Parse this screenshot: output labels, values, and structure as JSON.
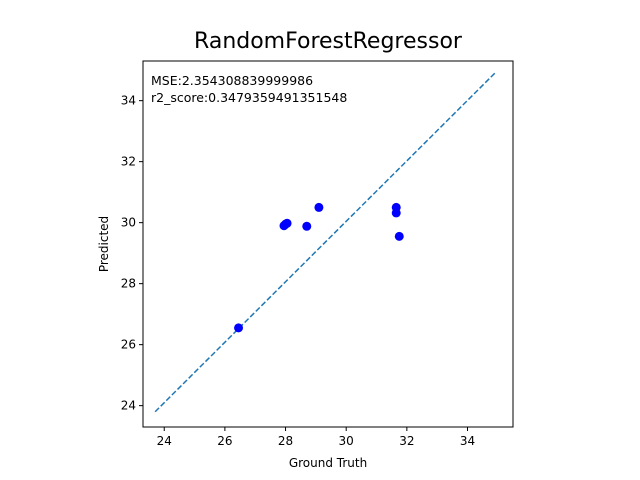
{
  "chart_data": {
    "type": "scatter",
    "title": "RandomForestRegressor",
    "xlabel": "Ground Truth",
    "ylabel": "Predicted",
    "xlim": [
      23.3,
      35.5
    ],
    "ylim": [
      23.3,
      35.3
    ],
    "xticks": [
      24,
      26,
      28,
      30,
      32,
      34
    ],
    "yticks": [
      24,
      26,
      28,
      30,
      32,
      34
    ],
    "annotations": [
      "MSE:2.354308839999986",
      "r2_score:0.3479359491351548"
    ],
    "reference_line": {
      "x": [
        23.7,
        34.9
      ],
      "y": [
        23.8,
        34.9
      ],
      "style": "dashed",
      "color": "#1f77b4"
    },
    "point_color": "#0000ff",
    "points": [
      {
        "x": 26.45,
        "y": 26.55
      },
      {
        "x": 27.95,
        "y": 29.9
      },
      {
        "x": 28.0,
        "y": 29.95
      },
      {
        "x": 28.05,
        "y": 29.98
      },
      {
        "x": 28.7,
        "y": 29.88
      },
      {
        "x": 29.1,
        "y": 30.5
      },
      {
        "x": 31.65,
        "y": 30.5
      },
      {
        "x": 31.65,
        "y": 30.32
      },
      {
        "x": 31.75,
        "y": 29.55
      }
    ]
  }
}
